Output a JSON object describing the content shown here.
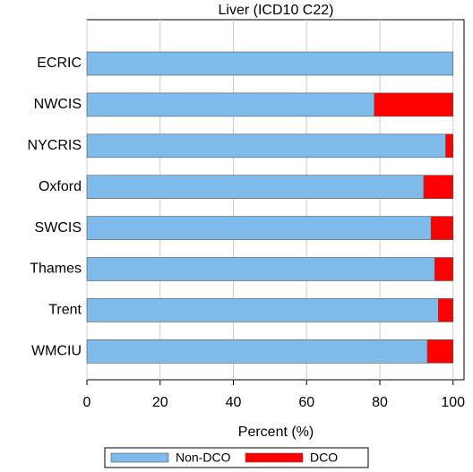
{
  "chart_data": {
    "type": "stacked-barh",
    "title": "Liver (ICD10 C22)",
    "categories": [
      "ECRIC",
      "NWCIS",
      "NYCRIS",
      "Oxford",
      "SWCIS",
      "Thames",
      "Trent",
      "WMCIU"
    ],
    "series": [
      {
        "name": "Non-DCO",
        "color": "#7fbbea",
        "values": [
          100,
          78.5,
          98,
          92,
          94,
          95,
          96,
          93
        ]
      },
      {
        "name": "DCO",
        "color": "#ff0000",
        "values": [
          0,
          21.5,
          2,
          8,
          6,
          5,
          4,
          7
        ]
      }
    ],
    "xlabel": "Percent (%)",
    "xlim": [
      0,
      103
    ],
    "xticks": [
      0,
      20,
      40,
      60,
      80,
      100
    ],
    "grid": true
  }
}
